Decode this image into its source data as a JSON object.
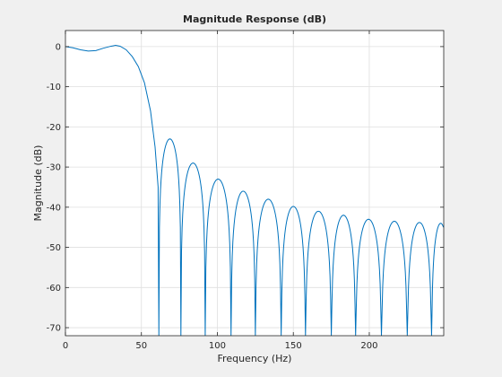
{
  "chart_data": {
    "type": "line",
    "title": "Magnitude Response (dB)",
    "xlabel": "Frequency (Hz)",
    "ylabel": "Magnitude (dB)",
    "xlim": [
      0,
      249
    ],
    "ylim": [
      -72,
      4
    ],
    "xticks": [
      0,
      50,
      100,
      150,
      200
    ],
    "yticks": [
      0,
      -10,
      -20,
      -30,
      -40,
      -50,
      -60,
      -70
    ],
    "grid": true,
    "line_color": "#0072bd",
    "series": [
      {
        "passband": [
          [
            0,
            0.0
          ],
          [
            5,
            -0.3
          ],
          [
            10,
            -0.8
          ],
          [
            15,
            -1.1
          ],
          [
            20,
            -1.0
          ],
          [
            25,
            -0.4
          ],
          [
            30,
            0.1
          ],
          [
            33,
            0.3
          ],
          [
            36,
            0.1
          ],
          [
            40,
            -0.8
          ],
          [
            44,
            -2.5
          ],
          [
            48,
            -5.0
          ],
          [
            52,
            -9.0
          ],
          [
            56,
            -16.0
          ],
          [
            59,
            -25.0
          ],
          [
            61,
            -35.0
          ]
        ],
        "nulls": [
          61.5,
          76,
          92,
          109,
          125,
          142,
          158,
          175,
          191,
          208,
          225,
          241
        ],
        "lobe_peaks": [
          -23,
          -29,
          -33,
          -36,
          -38,
          -39.8,
          -41,
          -42,
          -43,
          -43.5,
          -43.8,
          -44
        ],
        "null_depth": -72
      }
    ]
  }
}
